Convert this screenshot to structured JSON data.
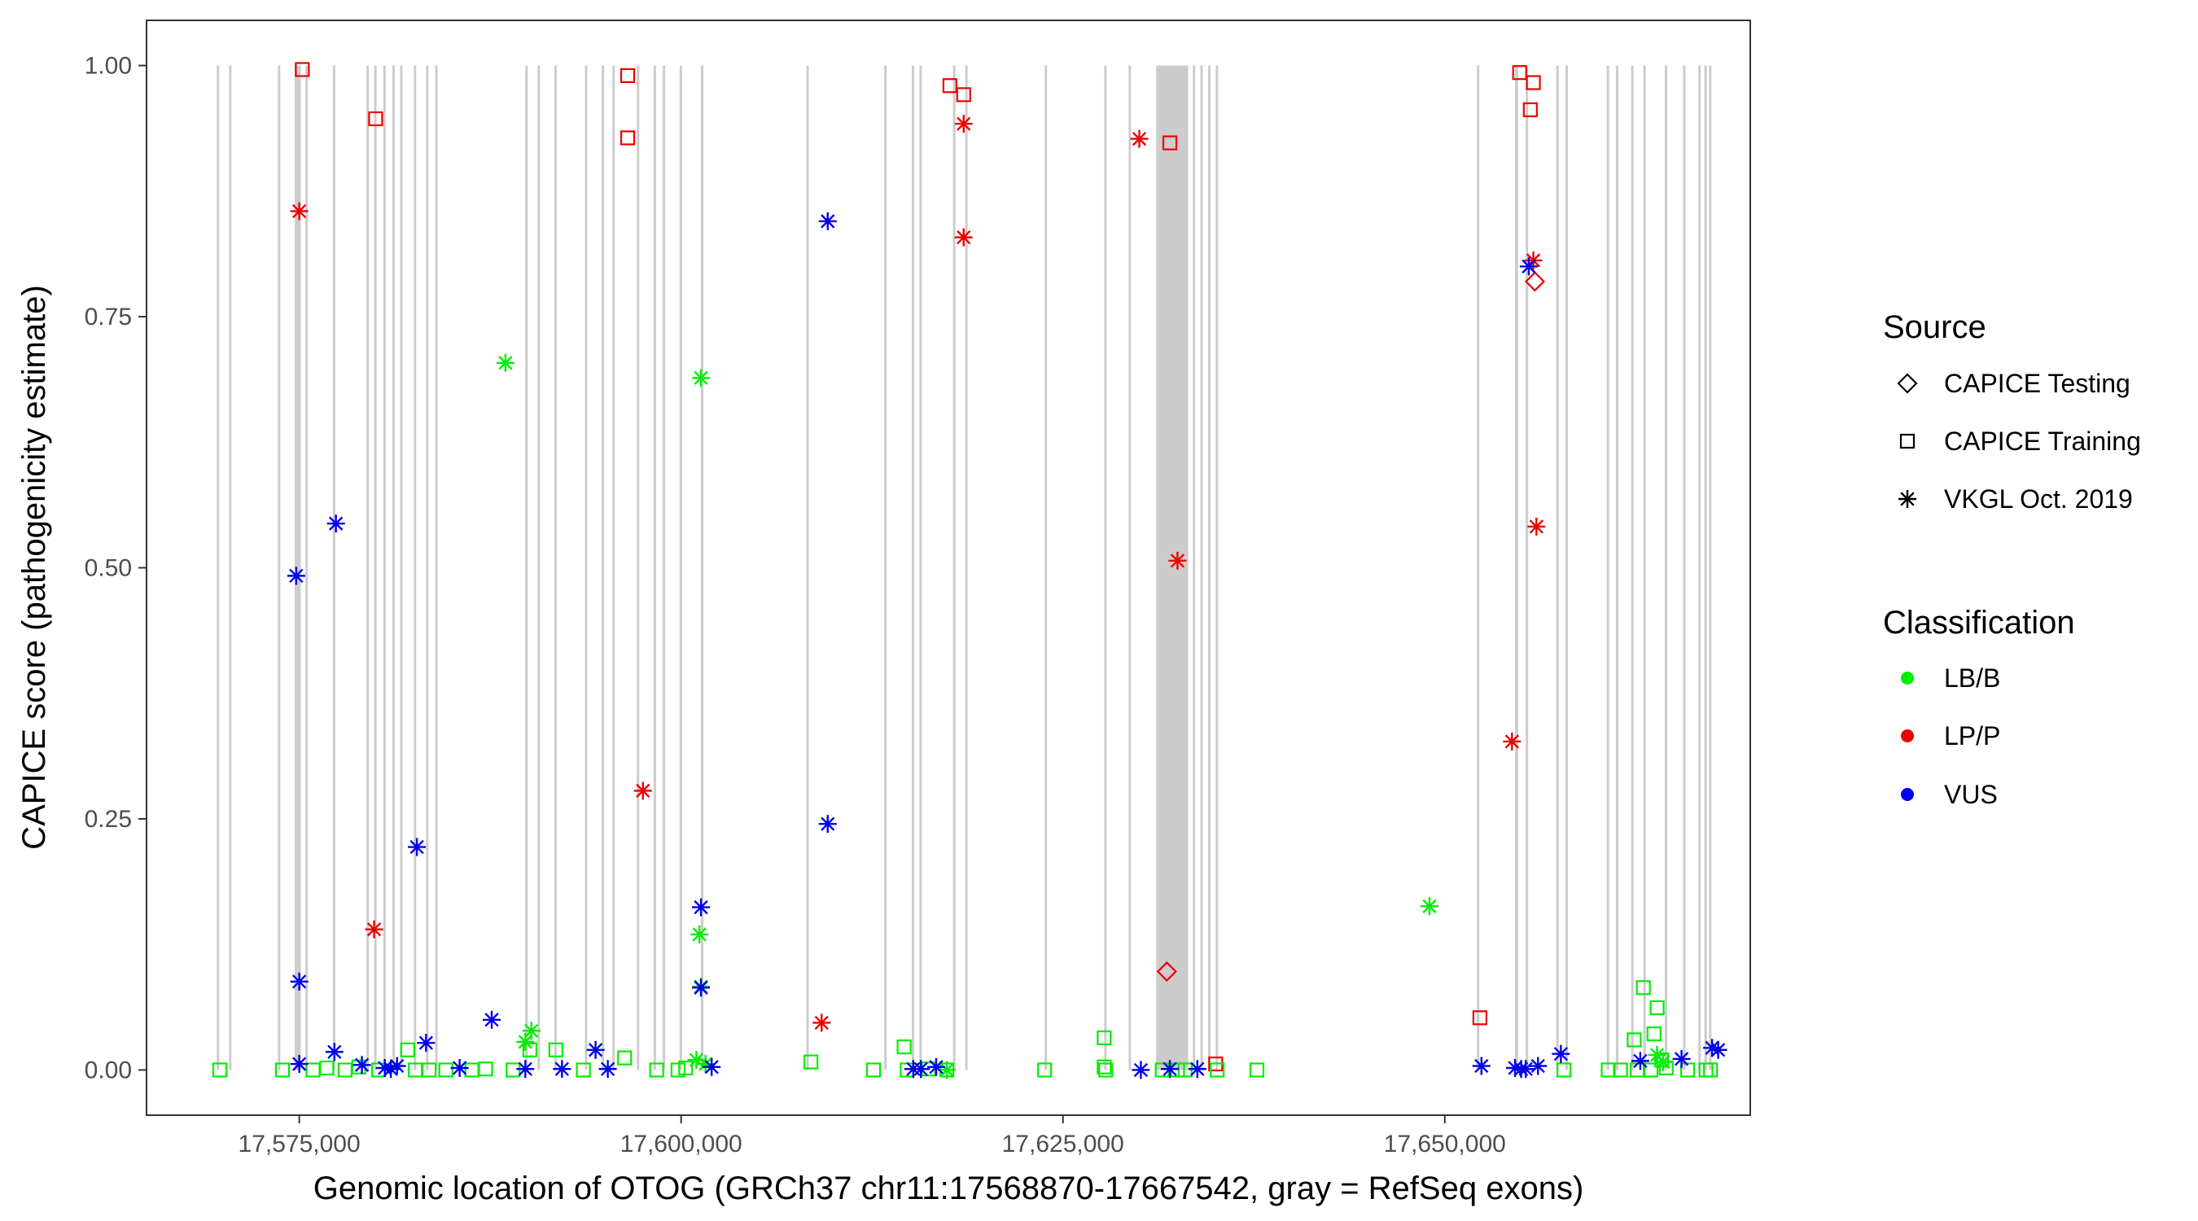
{
  "chart_data": {
    "type": "scatter",
    "xlabel": "Genomic location of OTOG (GRCh37 chr11:17568870-17667542, gray = RefSeq exons)",
    "ylabel": "CAPICE score (pathogenicity estimate)",
    "xlim": [
      17565000,
      17670000
    ],
    "ylim": [
      -0.045,
      1.045
    ],
    "x_ticks": [
      17575000,
      17600000,
      17625000,
      17650000
    ],
    "x_tick_labels": [
      "17,575,000",
      "17,600,000",
      "17,625,000",
      "17,650,000"
    ],
    "y_ticks": [
      0,
      0.25,
      0.5,
      0.75,
      1
    ],
    "y_tick_labels": [
      "0.00",
      "0.25",
      "0.50",
      "0.75",
      "1.00"
    ],
    "grid": false,
    "legend_position": "right",
    "exons": [
      [
        17569600,
        17569700
      ],
      [
        17570400,
        17570500
      ],
      [
        17573600,
        17573700
      ],
      [
        17574700,
        17575100
      ],
      [
        17575400,
        17575500
      ],
      [
        17577200,
        17577300
      ],
      [
        17579400,
        17579500
      ],
      [
        17579900,
        17580000
      ],
      [
        17580500,
        17580600
      ],
      [
        17581100,
        17581200
      ],
      [
        17581600,
        17581700
      ],
      [
        17582500,
        17582600
      ],
      [
        17583300,
        17583400
      ],
      [
        17583900,
        17584000
      ],
      [
        17589800,
        17589900
      ],
      [
        17590600,
        17590700
      ],
      [
        17591700,
        17591800
      ],
      [
        17593700,
        17593800
      ],
      [
        17594800,
        17594900
      ],
      [
        17595500,
        17595600
      ],
      [
        17597100,
        17597200
      ],
      [
        17598200,
        17598300
      ],
      [
        17598800,
        17598900
      ],
      [
        17599900,
        17600000
      ],
      [
        17601300,
        17601400
      ],
      [
        17608200,
        17608300
      ],
      [
        17613300,
        17613400
      ],
      [
        17615100,
        17615200
      ],
      [
        17615600,
        17615700
      ],
      [
        17617800,
        17617900
      ],
      [
        17618600,
        17618700
      ],
      [
        17623800,
        17623900
      ],
      [
        17627700,
        17627800
      ],
      [
        17629300,
        17629400
      ],
      [
        17631100,
        17633200
      ],
      [
        17633500,
        17633600
      ],
      [
        17634000,
        17634100
      ],
      [
        17634500,
        17634600
      ],
      [
        17635000,
        17635100
      ],
      [
        17652100,
        17652200
      ],
      [
        17654600,
        17654800
      ],
      [
        17655300,
        17655400
      ],
      [
        17657300,
        17657400
      ],
      [
        17657900,
        17658000
      ],
      [
        17660600,
        17660700
      ],
      [
        17661200,
        17661300
      ],
      [
        17662200,
        17662300
      ],
      [
        17663000,
        17663100
      ],
      [
        17664400,
        17664500
      ],
      [
        17665600,
        17665700
      ],
      [
        17666600,
        17666700
      ],
      [
        17667000,
        17667100
      ],
      [
        17667300,
        17667400
      ]
    ],
    "legend": {
      "source_title": "Source",
      "source_items": [
        "CAPICE Testing",
        "CAPICE Training",
        "VKGL Oct. 2019"
      ],
      "class_title": "Classification",
      "class_items": [
        "LB/B",
        "LP/P",
        "VUS"
      ]
    },
    "colors": {
      "LB/B": "#00ee00",
      "LP/P": "#ee0000",
      "VUS": "#0000ee",
      "exon": "#cccccc"
    },
    "series": [
      {
        "source": "CAPICE Testing",
        "class": "LP/P",
        "points": [
          [
            17631800,
            0.098
          ],
          [
            17655900,
            0.785
          ]
        ]
      },
      {
        "source": "CAPICE Training",
        "class": "LP/P",
        "points": [
          [
            17575200,
            0.996
          ],
          [
            17580000,
            0.947
          ],
          [
            17596500,
            0.99
          ],
          [
            17596500,
            0.928
          ],
          [
            17617600,
            0.98
          ],
          [
            17618500,
            0.971
          ],
          [
            17632000,
            0.923
          ],
          [
            17635000,
            0.006
          ],
          [
            17652300,
            0.052
          ],
          [
            17654900,
            0.993
          ],
          [
            17655800,
            0.983
          ],
          [
            17655600,
            0.956
          ]
        ]
      },
      {
        "source": "CAPICE Training",
        "class": "LB/B",
        "points": [
          [
            17569800,
            0
          ],
          [
            17573900,
            0
          ],
          [
            17575900,
            0
          ],
          [
            17576800,
            0.002
          ],
          [
            17578000,
            0
          ],
          [
            17578900,
            0.003
          ],
          [
            17580200,
            0
          ],
          [
            17582100,
            0.02
          ],
          [
            17582600,
            0
          ],
          [
            17583500,
            0
          ],
          [
            17584600,
            0
          ],
          [
            17586300,
            0
          ],
          [
            17587200,
            0.001
          ],
          [
            17589000,
            0
          ],
          [
            17590100,
            0.02
          ],
          [
            17591800,
            0.02
          ],
          [
            17593600,
            0
          ],
          [
            17596300,
            0.012
          ],
          [
            17598400,
            0
          ],
          [
            17599800,
            0
          ],
          [
            17600300,
            0.002
          ],
          [
            17608500,
            0.008
          ],
          [
            17612600,
            0
          ],
          [
            17614600,
            0.023
          ],
          [
            17614800,
            0
          ],
          [
            17616200,
            0.001
          ],
          [
            17617400,
            0
          ],
          [
            17623800,
            0
          ],
          [
            17627700,
            0.032
          ],
          [
            17627700,
            0.003
          ],
          [
            17627800,
            0
          ],
          [
            17631500,
            0
          ],
          [
            17632500,
            0
          ],
          [
            17633000,
            0
          ],
          [
            17635100,
            0
          ],
          [
            17637700,
            0
          ],
          [
            17657800,
            0
          ],
          [
            17660700,
            0
          ],
          [
            17661500,
            0
          ],
          [
            17662400,
            0.03
          ],
          [
            17662600,
            0
          ],
          [
            17663000,
            0.082
          ],
          [
            17663500,
            0
          ],
          [
            17663700,
            0.036
          ],
          [
            17663900,
            0.062
          ],
          [
            17664200,
            0.01
          ],
          [
            17665900,
            0
          ],
          [
            17667100,
            0
          ],
          [
            17667400,
            0
          ],
          [
            17664500,
            0.002
          ]
        ]
      },
      {
        "source": "VKGL Oct. 2019",
        "class": "LP/P",
        "points": [
          [
            17575000,
            0.855
          ],
          [
            17579900,
            0.14
          ],
          [
            17597500,
            0.278
          ],
          [
            17609200,
            0.047
          ],
          [
            17618500,
            0.942
          ],
          [
            17618500,
            0.829
          ],
          [
            17630000,
            0.927
          ],
          [
            17632500,
            0.507
          ],
          [
            17654400,
            0.327
          ],
          [
            17655800,
            0.806
          ],
          [
            17656000,
            0.541
          ]
        ]
      },
      {
        "source": "VKGL Oct. 2019",
        "class": "LB/B",
        "points": [
          [
            17588500,
            0.704
          ],
          [
            17601300,
            0.689
          ],
          [
            17601200,
            0.135
          ],
          [
            17601300,
            0.083
          ],
          [
            17590200,
            0.039
          ],
          [
            17589800,
            0.028
          ],
          [
            17601000,
            0.01
          ],
          [
            17601600,
            0.006
          ],
          [
            17617400,
            0
          ],
          [
            17649000,
            0.163
          ],
          [
            17663900,
            0.015
          ],
          [
            17664300,
            0.008
          ]
        ]
      },
      {
        "source": "VKGL Oct. 2019",
        "class": "VUS",
        "points": [
          [
            17574800,
            0.492
          ],
          [
            17577400,
            0.544
          ],
          [
            17582700,
            0.222
          ],
          [
            17575000,
            0.088
          ],
          [
            17575000,
            0.006
          ],
          [
            17577300,
            0.018
          ],
          [
            17579100,
            0.005
          ],
          [
            17580600,
            0.002
          ],
          [
            17581000,
            0.001
          ],
          [
            17581400,
            0.004
          ],
          [
            17583300,
            0.027
          ],
          [
            17585500,
            0.002
          ],
          [
            17587600,
            0.05
          ],
          [
            17589800,
            0.001
          ],
          [
            17592200,
            0.001
          ],
          [
            17594400,
            0.02
          ],
          [
            17595200,
            0.001
          ],
          [
            17601300,
            0.162
          ],
          [
            17601300,
            0.082
          ],
          [
            17602000,
            0.003
          ],
          [
            17609600,
            0.845
          ],
          [
            17609600,
            0.245
          ],
          [
            17615200,
            0.001
          ],
          [
            17615700,
            0.001
          ],
          [
            17616700,
            0.003
          ],
          [
            17630100,
            0
          ],
          [
            17632000,
            0.001
          ],
          [
            17633800,
            0.001
          ],
          [
            17652400,
            0.004
          ],
          [
            17654600,
            0.002
          ],
          [
            17655000,
            0.001
          ],
          [
            17655300,
            0.001
          ],
          [
            17657600,
            0.016
          ],
          [
            17655500,
            0.8
          ],
          [
            17656100,
            0.004
          ],
          [
            17662800,
            0.009
          ],
          [
            17665500,
            0.011
          ],
          [
            17667500,
            0.022
          ],
          [
            17667900,
            0.02
          ]
        ]
      }
    ]
  }
}
